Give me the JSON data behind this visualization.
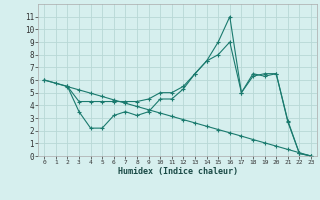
{
  "xlabel": "Humidex (Indice chaleur)",
  "bg_color": "#d6efee",
  "grid_color": "#b8d8d6",
  "line_color": "#1a7a6e",
  "xlim": [
    -0.5,
    23.5
  ],
  "ylim": [
    0,
    12
  ],
  "xticks": [
    0,
    1,
    2,
    3,
    4,
    5,
    6,
    7,
    8,
    9,
    10,
    11,
    12,
    13,
    14,
    15,
    16,
    17,
    18,
    19,
    20,
    21,
    22,
    23
  ],
  "yticks": [
    0,
    1,
    2,
    3,
    4,
    5,
    6,
    7,
    8,
    9,
    10,
    11
  ],
  "lines": [
    {
      "x": [
        0,
        1,
        2,
        3,
        4,
        5,
        6,
        7,
        8,
        9,
        10,
        11,
        12,
        13,
        14,
        15,
        16,
        17,
        18,
        19,
        20,
        21,
        22,
        23
      ],
      "y": [
        6.0,
        5.74,
        5.48,
        5.22,
        4.96,
        4.7,
        4.43,
        4.17,
        3.91,
        3.65,
        3.39,
        3.13,
        2.87,
        2.61,
        2.35,
        2.09,
        1.83,
        1.57,
        1.3,
        1.04,
        0.78,
        0.52,
        0.26,
        0.0
      ]
    },
    {
      "x": [
        0,
        2,
        3,
        4,
        5,
        6,
        7,
        8,
        9,
        10,
        11,
        12,
        13,
        14,
        15,
        16,
        17,
        18,
        19,
        20,
        21,
        22,
        23
      ],
      "y": [
        6.0,
        5.5,
        4.3,
        4.3,
        4.3,
        4.3,
        4.3,
        4.3,
        4.5,
        5.0,
        5.0,
        5.5,
        6.5,
        7.5,
        8.0,
        9.0,
        5.0,
        6.3,
        6.5,
        6.5,
        2.7,
        0.2,
        0.0
      ]
    },
    {
      "x": [
        2,
        3,
        4,
        5,
        6,
        7,
        8,
        9,
        10,
        11,
        12,
        13,
        14,
        15,
        16,
        17,
        18,
        19,
        20,
        21,
        22,
        23
      ],
      "y": [
        5.5,
        3.5,
        2.2,
        2.2,
        3.2,
        3.5,
        3.2,
        3.5,
        4.5,
        4.5,
        5.3,
        6.5,
        7.5,
        9.0,
        11.0,
        5.0,
        6.5,
        6.3,
        6.5,
        2.8,
        0.2,
        0.0
      ]
    }
  ]
}
